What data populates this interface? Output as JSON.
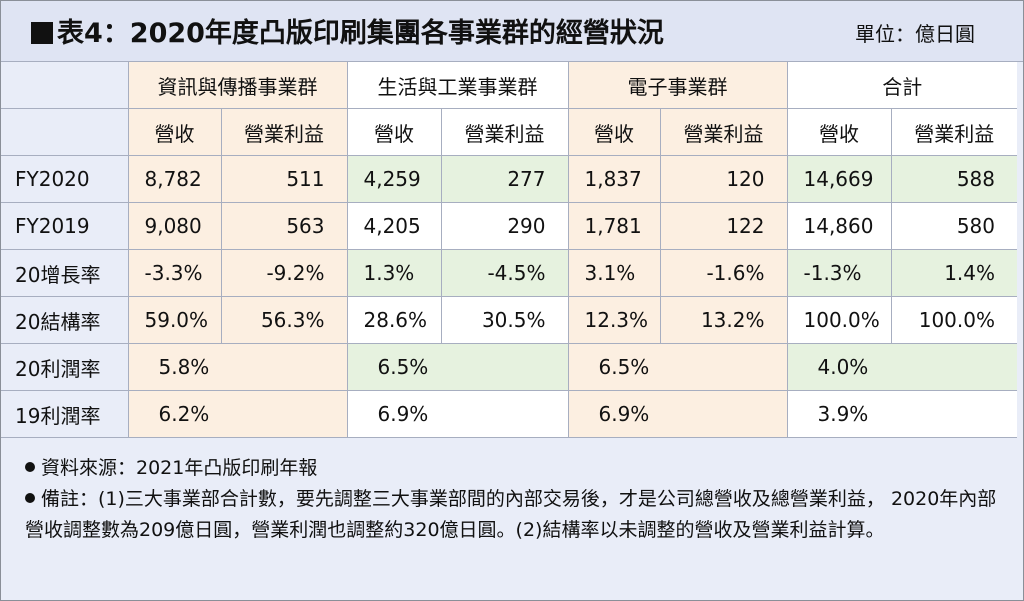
{
  "title": "表4：2020年度凸版印刷集團各事業群的經營狀況",
  "unit": "單位：億日圓",
  "groups": [
    "資訊與傳播事業群",
    "生活與工業事業群",
    "電子事業群",
    "合計"
  ],
  "sub_headers": [
    "營收",
    "營業利益"
  ],
  "rows": [
    {
      "label": "FY2020",
      "cells": [
        "8,782",
        "511",
        "4,259",
        "277",
        "1,837",
        "120",
        "14,669",
        "588"
      ]
    },
    {
      "label": "FY2019",
      "cells": [
        "9,080",
        "563",
        "4,205",
        "290",
        "1,781",
        "122",
        "14,860",
        "580"
      ]
    },
    {
      "label": "20增長率",
      "cells": [
        "-3.3%",
        "-9.2%",
        "1.3%",
        "-4.5%",
        "3.1%",
        "-1.6%",
        "-1.3%",
        "1.4%"
      ]
    },
    {
      "label": "20結構率",
      "cells": [
        "59.0%",
        "56.3%",
        "28.6%",
        "30.5%",
        "12.3%",
        "13.2%",
        "100.0%",
        "100.0%"
      ]
    }
  ],
  "margin_rows": [
    {
      "label": "20利潤率",
      "cells": [
        "5.8%",
        "6.5%",
        "6.5%",
        "4.0%"
      ]
    },
    {
      "label": "19利潤率",
      "cells": [
        "6.2%",
        "6.9%",
        "6.9%",
        "3.9%"
      ]
    }
  ],
  "notes": [
    "資料來源：2021年凸版印刷年報",
    "備註：(1)三大事業部合計數，要先調整三大事業部間的內部交易後，才是公司總營收及總營業利益， 2020年內部營收調整數為209億日圓，營業利潤也調整約320億日圓。(2)結構率以未調整的營收及營業利益計算。"
  ]
}
